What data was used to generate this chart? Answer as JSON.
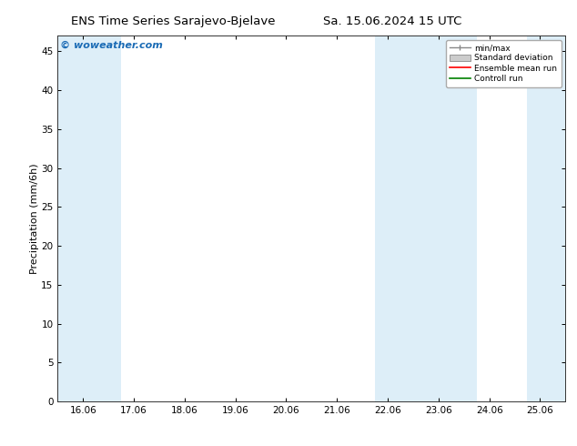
{
  "title_left": "ENS Time Series Sarajevo-Bjelave",
  "title_right": "Sa. 15.06.2024 15 UTC",
  "ylabel": "Precipitation (mm/6h)",
  "watermark": "© woweather.com",
  "xlim_left": 15.5,
  "xlim_right": 25.5,
  "ylim_bottom": 0,
  "ylim_top": 47,
  "yticks": [
    0,
    5,
    10,
    15,
    20,
    25,
    30,
    35,
    40,
    45
  ],
  "xtick_labels": [
    "16.06",
    "17.06",
    "18.06",
    "19.06",
    "20.06",
    "21.06",
    "22.06",
    "23.06",
    "24.06",
    "25.06"
  ],
  "xtick_positions": [
    16,
    17,
    18,
    19,
    20,
    21,
    22,
    23,
    24,
    25
  ],
  "shaded_regions": [
    {
      "x_start": 15.5,
      "x_end": 16.75,
      "color": "#ddeef8"
    },
    {
      "x_start": 21.75,
      "x_end": 23.75,
      "color": "#ddeef8"
    },
    {
      "x_start": 24.75,
      "x_end": 25.5,
      "color": "#ddeef8"
    }
  ],
  "background_color": "#ffffff",
  "plot_bg_color": "#ffffff",
  "legend_labels": [
    "min/max",
    "Standard deviation",
    "Ensemble mean run",
    "Controll run"
  ],
  "legend_colors": [
    "#aaaaaa",
    "#cccccc",
    "#ff0000",
    "#008000"
  ],
  "watermark_color": "#1a6bb5",
  "title_fontsize": 9.5,
  "tick_fontsize": 7.5,
  "ylabel_fontsize": 8
}
